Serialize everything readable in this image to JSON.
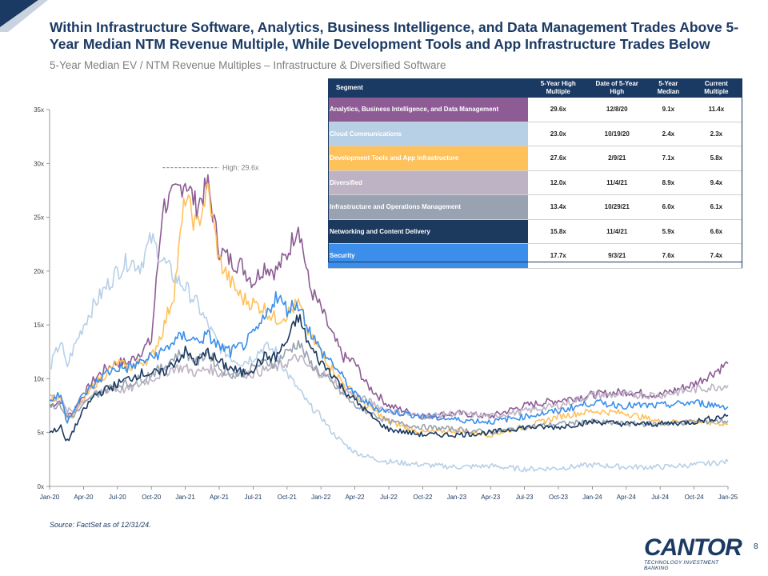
{
  "title": "Within Infrastructure Software, Analytics, Business Intelligence, and Data Management Trades Above 5-Year Median NTM Revenue Multiple, While Development Tools and App Infrastructure Trades Below",
  "subtitle": "5-Year Median EV / NTM Revenue Multiples – Infrastructure & Diversified Software",
  "table": {
    "headers": {
      "segment": "Segment",
      "high": "5-Year High Multiple",
      "date": "Date of 5-Year High",
      "median": "5-Year Median",
      "current": "Current Multiple"
    },
    "rows": [
      {
        "segment": "Analytics, Business Intelligence, and Data Management",
        "color": "#8e5c95",
        "high": "29.6x",
        "date": "12/8/20",
        "median": "9.1x",
        "current": "11.4x"
      },
      {
        "segment": "Cloud Communications",
        "color": "#b8d0e6",
        "high": "23.0x",
        "date": "10/19/20",
        "median": "2.4x",
        "current": "2.3x"
      },
      {
        "segment": "Development Tools and App Infrastructure",
        "color": "#ffc15a",
        "high": "27.6x",
        "date": "2/9/21",
        "median": "7.1x",
        "current": "5.8x"
      },
      {
        "segment": "Diversified",
        "color": "#bdb3c4",
        "high": "12.0x",
        "date": "11/4/21",
        "median": "8.9x",
        "current": "9.4x"
      },
      {
        "segment": "Infrastructure and Operations Management",
        "color": "#98a2b1",
        "high": "13.4x",
        "date": "10/29/21",
        "median": "6.0x",
        "current": "6.1x"
      },
      {
        "segment": "Networking and Content Delivery",
        "color": "#1c3a5e",
        "high": "15.8x",
        "date": "11/4/21",
        "median": "5.9x",
        "current": "6.6x"
      },
      {
        "segment": "Security",
        "color": "#3b8fea",
        "high": "17.7x",
        "date": "9/3/21",
        "median": "7.6x",
        "current": "7.4x"
      }
    ]
  },
  "chart_data": {
    "type": "line",
    "title": "",
    "xlabel": "",
    "ylabel": "",
    "ylim": [
      0,
      35
    ],
    "yticks": [
      "0x",
      "5x",
      "10x",
      "15x",
      "20x",
      "25x",
      "30x",
      "35x"
    ],
    "x_tick_labels": [
      "Jan-20",
      "Apr-20",
      "Jul-20",
      "Oct-20",
      "Jan-21",
      "Apr-21",
      "Jul-21",
      "Oct-21",
      "Jan-22",
      "Apr-22",
      "Jul-22",
      "Oct-22",
      "Jan-23",
      "Apr-23",
      "Jul-23",
      "Oct-23",
      "Jan-24",
      "Apr-24",
      "Jul-24",
      "Oct-24",
      "Jan-25"
    ],
    "annotation": {
      "text": "High: 29.6x",
      "value": 29.6,
      "from_month": 10,
      "to_month": 15
    },
    "x_months": [
      0,
      1,
      1.5,
      2,
      3,
      4,
      5,
      6,
      7,
      8,
      9,
      10,
      11,
      12,
      13,
      14,
      15,
      16,
      17,
      18,
      19,
      20,
      21,
      22,
      23,
      24,
      25,
      26,
      27,
      28,
      29,
      30,
      33,
      36,
      39,
      42,
      45,
      48,
      51,
      54,
      57,
      60
    ],
    "series": [
      {
        "name": "Analytics, Business Intelligence, and Data Management",
        "color": "#8e5c95",
        "values": [
          7.5,
          8.0,
          6.5,
          6.8,
          8.5,
          10.0,
          11.0,
          11.5,
          11.5,
          12.5,
          13.5,
          26.0,
          27.0,
          28.5,
          26.0,
          28.0,
          22.0,
          21.0,
          20.5,
          19.0,
          20.5,
          20.0,
          21.5,
          24.5,
          18.5,
          16.5,
          14.0,
          12.0,
          11.5,
          9.5,
          8.5,
          7.5,
          6.5,
          6.8,
          6.5,
          7.5,
          8.0,
          8.5,
          8.8,
          8.5,
          9.5,
          11.4
        ]
      },
      {
        "name": "Cloud Communications",
        "color": "#b8d0e6",
        "values": [
          11.0,
          13.5,
          11.0,
          12.5,
          15.0,
          17.0,
          18.5,
          20.0,
          21.0,
          20.5,
          23.0,
          21.0,
          19.5,
          18.5,
          17.0,
          15.0,
          13.0,
          12.0,
          11.5,
          12.0,
          13.0,
          12.5,
          10.5,
          9.0,
          7.5,
          6.5,
          5.0,
          4.0,
          3.2,
          2.8,
          2.5,
          2.3,
          2.0,
          1.8,
          1.9,
          1.6,
          1.7,
          2.0,
          1.8,
          1.8,
          2.0,
          2.3
        ]
      },
      {
        "name": "Development Tools and App Infrastructure",
        "color": "#ffc15a",
        "values": [
          8.0,
          8.5,
          6.5,
          6.5,
          8.0,
          9.5,
          10.5,
          11.5,
          11.0,
          11.5,
          12.0,
          14.5,
          18.0,
          27.0,
          24.0,
          27.6,
          21.0,
          19.0,
          17.5,
          17.0,
          16.5,
          15.5,
          16.0,
          17.0,
          14.0,
          12.5,
          11.0,
          9.5,
          8.5,
          7.5,
          6.8,
          6.0,
          5.0,
          5.2,
          4.8,
          5.5,
          6.5,
          7.0,
          6.8,
          6.0,
          6.0,
          5.8
        ]
      },
      {
        "name": "Diversified",
        "color": "#bdb3c4",
        "values": [
          8.5,
          8.0,
          7.0,
          7.0,
          8.0,
          8.5,
          9.0,
          9.0,
          9.0,
          9.5,
          10.0,
          10.5,
          11.0,
          11.0,
          10.5,
          11.0,
          10.5,
          10.5,
          10.5,
          10.5,
          10.8,
          11.0,
          11.5,
          12.0,
          11.0,
          10.5,
          10.0,
          9.0,
          8.5,
          8.0,
          7.5,
          7.0,
          6.5,
          6.8,
          6.5,
          7.0,
          7.5,
          8.5,
          8.5,
          8.5,
          9.0,
          9.4
        ]
      },
      {
        "name": "Infrastructure and Operations Management",
        "color": "#98a2b1",
        "values": [
          7.5,
          7.5,
          6.5,
          6.5,
          7.5,
          8.5,
          9.0,
          9.5,
          9.5,
          10.0,
          10.5,
          11.0,
          12.0,
          12.5,
          11.5,
          12.5,
          11.0,
          10.5,
          10.5,
          11.0,
          11.5,
          11.5,
          12.5,
          13.4,
          11.5,
          10.5,
          9.5,
          8.5,
          7.5,
          7.0,
          6.5,
          6.0,
          5.5,
          5.3,
          5.0,
          5.5,
          5.8,
          6.0,
          5.8,
          5.8,
          6.0,
          6.1
        ]
      },
      {
        "name": "Networking and Content Delivery",
        "color": "#1c3a5e",
        "values": [
          5.0,
          5.5,
          4.0,
          5.0,
          7.0,
          8.5,
          9.0,
          9.5,
          10.0,
          10.5,
          10.5,
          10.5,
          11.5,
          12.5,
          11.5,
          12.5,
          11.5,
          11.0,
          10.5,
          11.0,
          12.0,
          12.0,
          13.5,
          15.8,
          13.0,
          11.5,
          10.5,
          9.0,
          8.0,
          7.0,
          6.0,
          5.3,
          4.8,
          4.8,
          5.0,
          5.5,
          5.5,
          6.0,
          5.8,
          5.8,
          6.0,
          6.6
        ]
      },
      {
        "name": "Security",
        "color": "#3b8fea",
        "values": [
          8.0,
          8.5,
          6.0,
          7.0,
          8.5,
          9.5,
          10.5,
          11.0,
          11.0,
          11.5,
          12.0,
          12.5,
          13.5,
          14.0,
          13.5,
          14.0,
          13.0,
          12.5,
          13.0,
          14.0,
          15.5,
          17.7,
          16.5,
          17.0,
          14.5,
          12.5,
          11.5,
          10.0,
          8.5,
          7.8,
          7.2,
          7.0,
          6.5,
          6.2,
          6.0,
          6.5,
          7.0,
          7.8,
          7.5,
          7.5,
          7.8,
          7.4
        ]
      }
    ]
  },
  "footer": {
    "source": "Source: FactSet as of 12/31/24.",
    "logo_text": "CANTOR",
    "logo_tagline": "TECHNOLOGY INVESTMENT BANKING",
    "page_number": "8"
  }
}
